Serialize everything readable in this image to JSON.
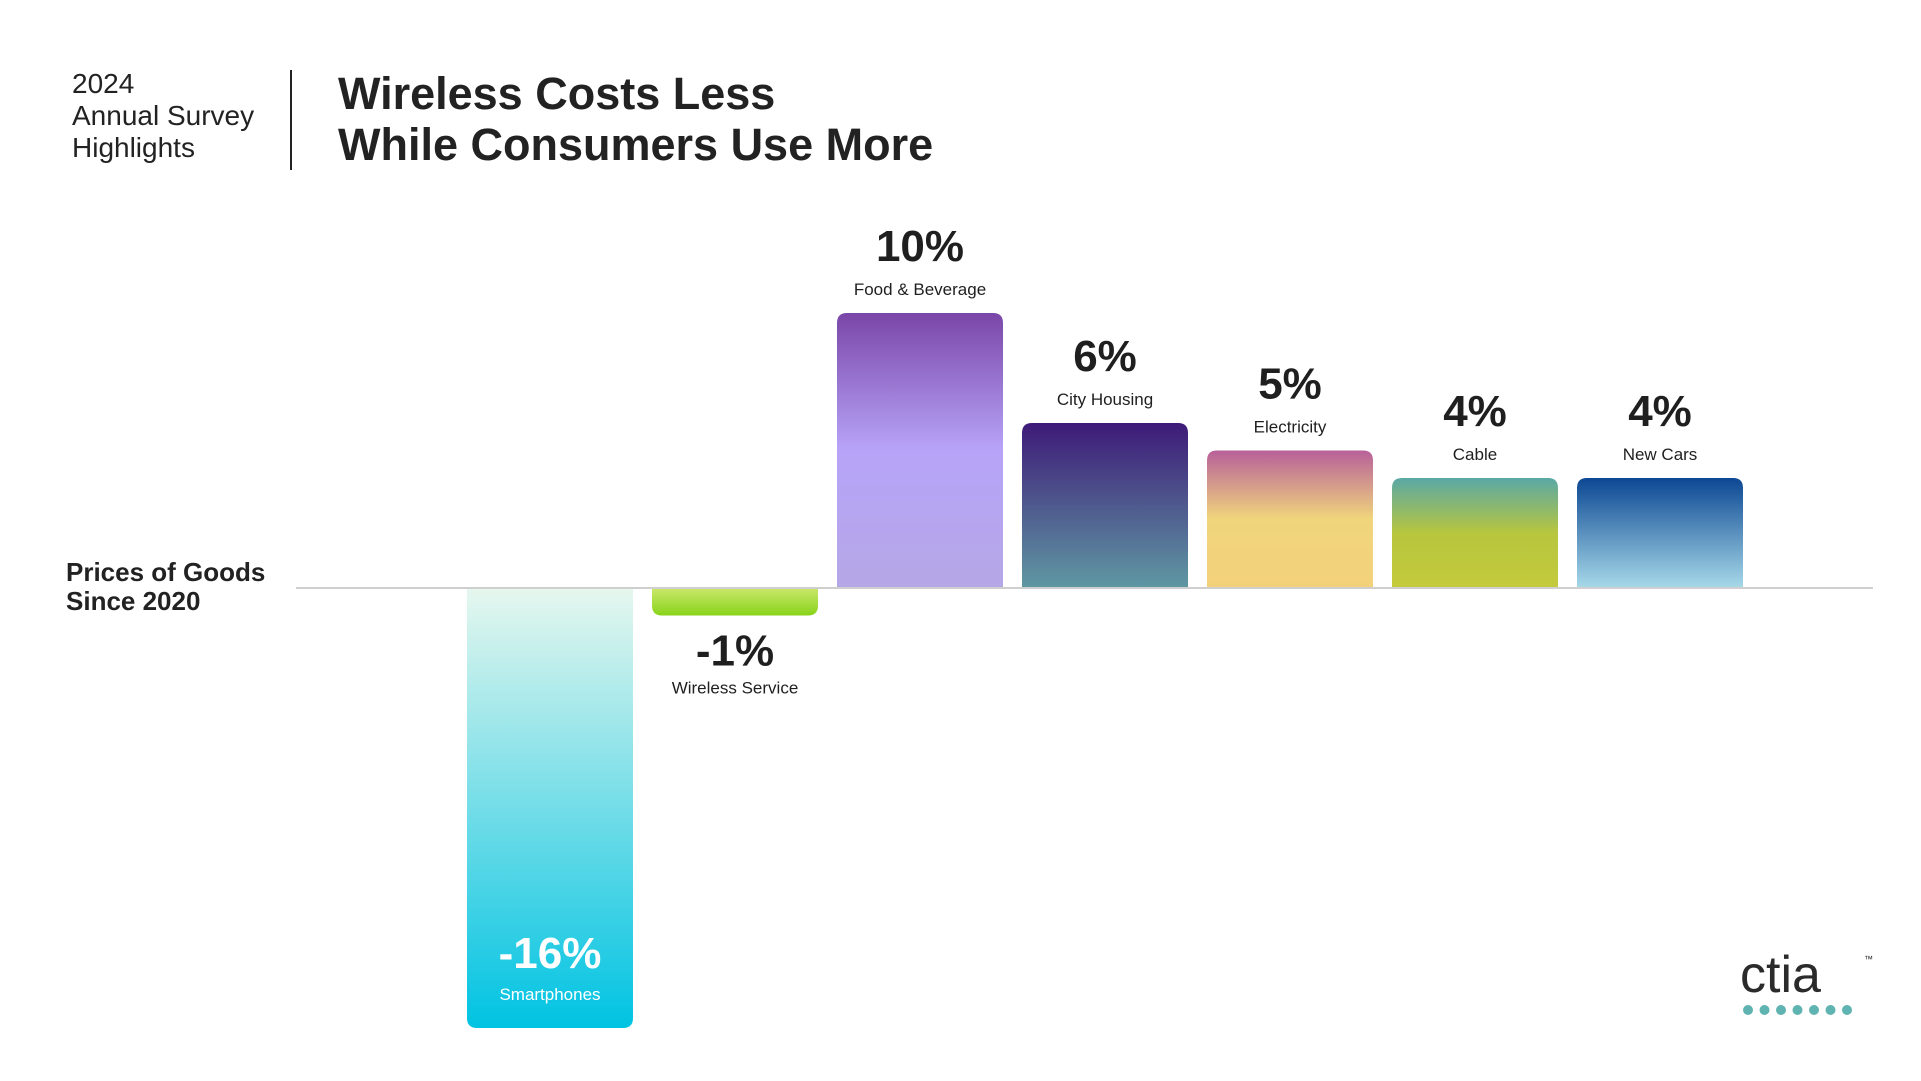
{
  "header": {
    "eyebrow_lines": [
      "2024",
      "Annual Survey",
      "Highlights"
    ],
    "title_lines": [
      "Wireless Costs Less",
      "While Consumers Use More"
    ]
  },
  "logo": {
    "text": "ctia",
    "trademark": "™",
    "dot_color": "#5fb3b0"
  },
  "chart_data": {
    "type": "bar",
    "ylabel_lines": [
      "Prices of Goods",
      "Since 2020"
    ],
    "ylim": [
      -16,
      10
    ],
    "grid": false,
    "legend": "none",
    "categories": [
      "Smartphones",
      "Wireless Service",
      "Food & Beverage",
      "City Housing",
      "Electricity",
      "Cable",
      "New Cars"
    ],
    "values": [
      -16,
      -1,
      10,
      6,
      5,
      4,
      4
    ],
    "value_labels": [
      "-16%",
      "-1%",
      "10%",
      "6%",
      "5%",
      "4%",
      "4%"
    ],
    "bar_gradients": [
      [
        "#e6f7ee",
        "#00c3e2"
      ],
      [
        "#cbe86b",
        "#88d31a"
      ],
      [
        "#7a46a8",
        "#b7a4f8",
        "#b5a6e6"
      ],
      [
        "#3e1a78",
        "#5f98a3"
      ],
      [
        "#b8609a",
        "#f0d57c",
        "#f3d17a"
      ],
      [
        "#5aa8a6",
        "#b7c63e",
        "#c4ca3c"
      ],
      [
        "#0c4793",
        "#a7d9e9"
      ]
    ]
  }
}
